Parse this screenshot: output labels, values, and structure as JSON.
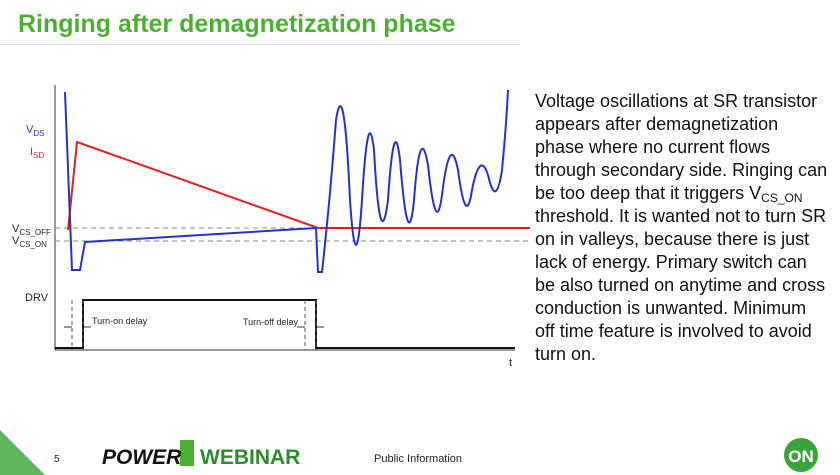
{
  "header": {
    "title": "Ringing after demagnetization phase"
  },
  "diagram": {
    "vds": {
      "main": "V",
      "sub": "DS"
    },
    "isd": {
      "main": "I",
      "sub": "SD"
    },
    "vcs_off": {
      "main": "V",
      "sub": "CS_OFF"
    },
    "vcs_on": {
      "main": "V",
      "sub": "CS_ON"
    },
    "drv": "DRV",
    "turn_on_delay": "Turn-on delay",
    "turn_off_delay": "Turn-off delay",
    "t_axis": "t"
  },
  "body": {
    "parts": [
      "Voltage oscillations at SR transistor appears after demagnetization phase where no current flows through secondary side. Ringing can be too deep that it triggers V",
      "CS_ON",
      " threshold. It is wanted not to turn SR on in valleys, because there is just lack of energy. Primary switch can be also turned on anytime and cross conduction is unwanted. Minimum off time feature is involved to avoid turn on."
    ]
  },
  "footer": {
    "page": "5",
    "brand_left": "POWER",
    "brand_right": "WEBINAR",
    "classification": "Public Information",
    "logo": "ON"
  }
}
